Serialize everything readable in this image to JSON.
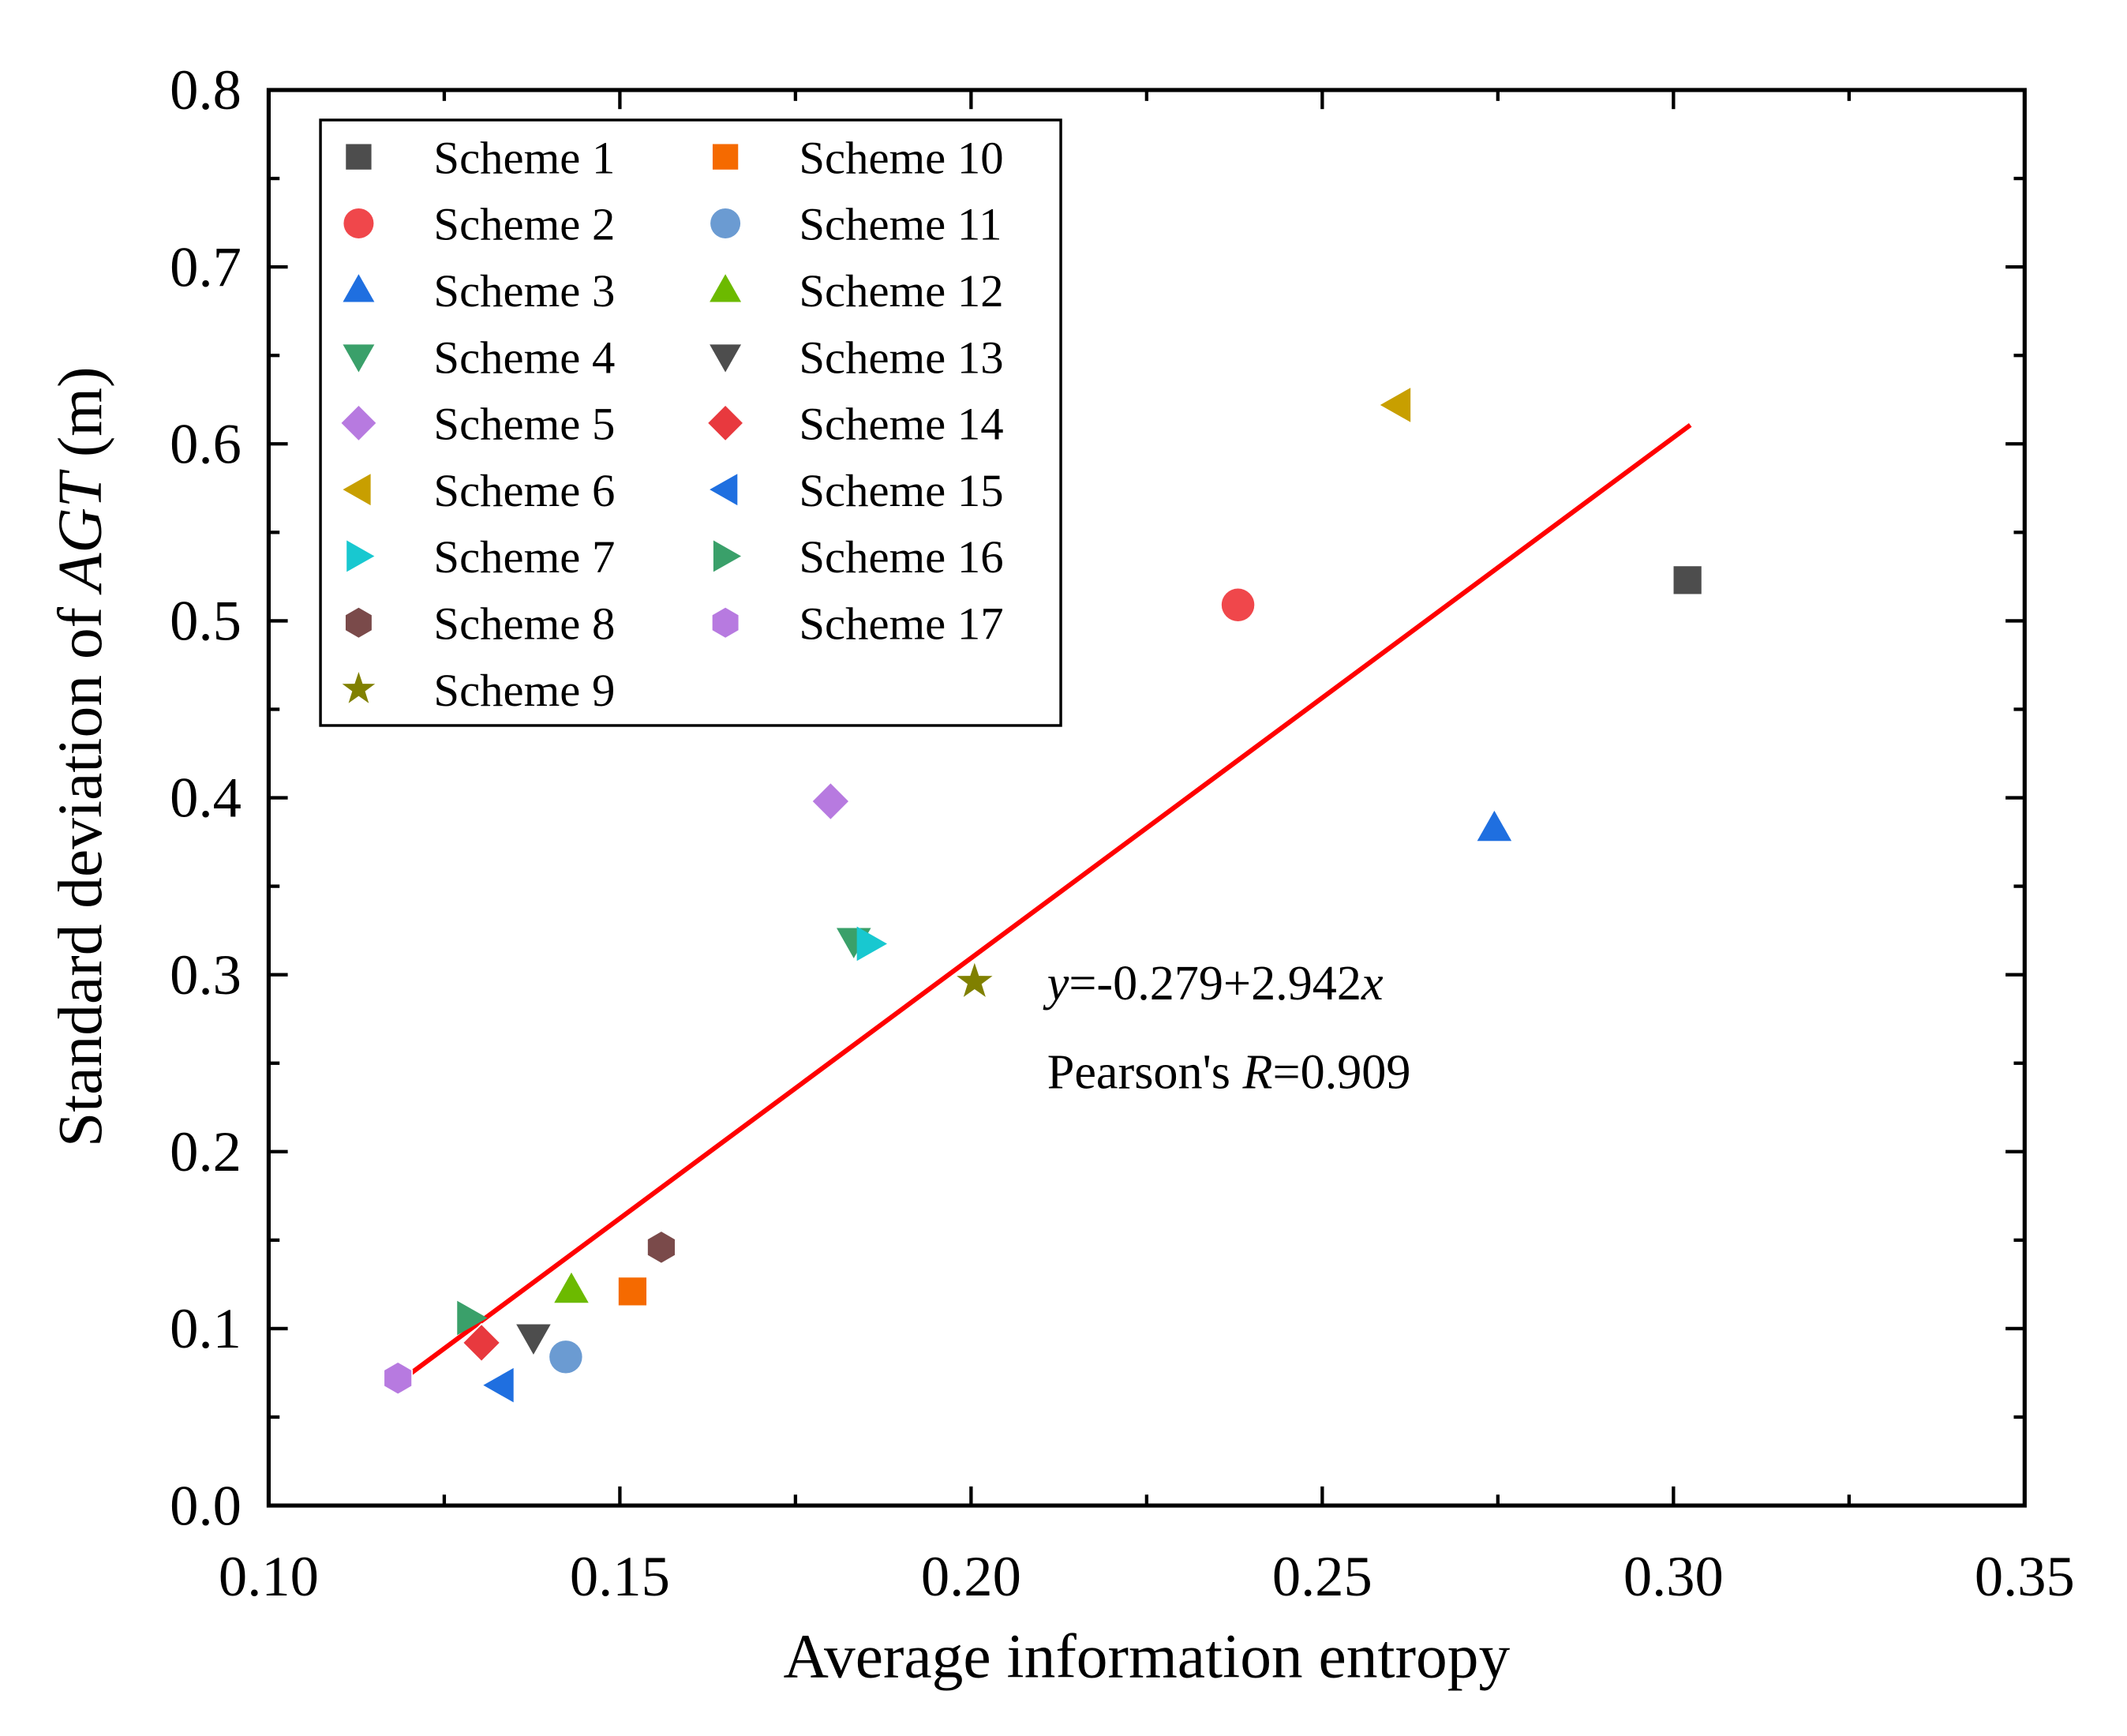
{
  "chart_data": {
    "type": "scatter",
    "xlabel": "Average information entropy",
    "ylabel_prefix": "Standard deviation of ",
    "ylabel_italic": "AGT",
    "ylabel_suffix": " (m)",
    "xlim": [
      0.1,
      0.35
    ],
    "ylim": [
      0.0,
      0.8
    ],
    "xticks": [
      "0.10",
      "0.15",
      "0.20",
      "0.25",
      "0.30",
      "0.35"
    ],
    "yticks": [
      "0.0",
      "0.1",
      "0.2",
      "0.3",
      "0.4",
      "0.5",
      "0.6",
      "0.7",
      "0.8"
    ],
    "grid": false,
    "legend_placement": "top-left",
    "series": [
      {
        "name": "Scheme 1",
        "marker": "square",
        "color": "#4d4d4d",
        "x": 0.302,
        "y": 0.523
      },
      {
        "name": "Scheme 2",
        "marker": "circle",
        "color": "#f0474b",
        "x": 0.238,
        "y": 0.509
      },
      {
        "name": "Scheme 3",
        "marker": "triangle-up",
        "color": "#1f6fe0",
        "x": 0.2745,
        "y": 0.383
      },
      {
        "name": "Scheme 4",
        "marker": "triangle-down",
        "color": "#3aa06a",
        "x": 0.1833,
        "y": 0.319
      },
      {
        "name": "Scheme 5",
        "marker": "diamond",
        "color": "#b77ae0",
        "x": 0.18,
        "y": 0.398
      },
      {
        "name": "Scheme 6",
        "marker": "triangle-left",
        "color": "#c89f00",
        "x": 0.2607,
        "y": 0.622
      },
      {
        "name": "Scheme 7",
        "marker": "triangle-right",
        "color": "#18c8d0",
        "x": 0.1856,
        "y": 0.3175
      },
      {
        "name": "Scheme 8",
        "marker": "hexagon",
        "color": "#7a4a4a",
        "x": 0.1559,
        "y": 0.146
      },
      {
        "name": "Scheme 9",
        "marker": "star",
        "color": "#808000",
        "x": 0.2005,
        "y": 0.296
      },
      {
        "name": "Scheme 10",
        "marker": "square",
        "color": "#f56a00",
        "x": 0.1518,
        "y": 0.121
      },
      {
        "name": "Scheme 11",
        "marker": "circle",
        "color": "#6b9bd2",
        "x": 0.1423,
        "y": 0.084
      },
      {
        "name": "Scheme 12",
        "marker": "triangle-up",
        "color": "#6cba00",
        "x": 0.1431,
        "y": 0.122
      },
      {
        "name": "Scheme 13",
        "marker": "triangle-down",
        "color": "#4d4d4d",
        "x": 0.1377,
        "y": 0.095
      },
      {
        "name": "Scheme 14",
        "marker": "diamond",
        "color": "#e8393e",
        "x": 0.1303,
        "y": 0.092
      },
      {
        "name": "Scheme 15",
        "marker": "triangle-left",
        "color": "#1f6fe0",
        "x": 0.133,
        "y": 0.068
      },
      {
        "name": "Scheme 16",
        "marker": "triangle-right",
        "color": "#3aa06a",
        "x": 0.1287,
        "y": 0.106
      },
      {
        "name": "Scheme 17",
        "marker": "hexagon",
        "color": "#b77ae0",
        "x": 0.1184,
        "y": 0.072
      }
    ],
    "fit_line": {
      "intercept": -0.279,
      "slope": 2.942,
      "x_range": [
        0.1184,
        0.3024
      ],
      "color": "#ff0000"
    },
    "annotations": {
      "equation_var_y": "y",
      "equation_body": "=-0.279+2.942",
      "equation_var_x": "x",
      "pearson_prefix": "Pearson's ",
      "pearson_var": "R",
      "pearson_value": "=0.909"
    }
  }
}
